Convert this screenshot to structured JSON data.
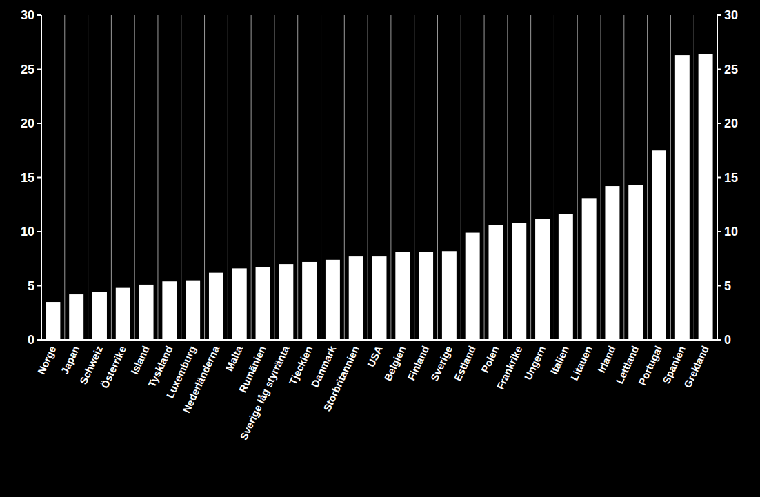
{
  "chart_data": {
    "type": "bar",
    "categories": [
      "Norge",
      "Japan",
      "Schweiz",
      "Österrike",
      "Island",
      "Tyskland",
      "Luxemburg",
      "Nederländerna",
      "Malta",
      "Rumänien",
      "Sverige låg styrränta",
      "Tjeckien",
      "Danmark",
      "Storbritannien",
      "USA",
      "Belgien",
      "Finland",
      "Sverige",
      "Estland",
      "Polen",
      "Frankrike",
      "Ungern",
      "Italien",
      "Litauen",
      "Irland",
      "Lettland",
      "Portugal",
      "Spanien",
      "Grekland"
    ],
    "values": [
      3.5,
      4.2,
      4.4,
      4.8,
      5.1,
      5.4,
      5.5,
      6.2,
      6.6,
      6.7,
      7.0,
      7.2,
      7.4,
      7.7,
      7.7,
      8.1,
      8.1,
      8.2,
      9.9,
      10.6,
      10.8,
      11.2,
      11.6,
      13.1,
      14.2,
      14.3,
      17.5,
      26.3,
      26.4
    ],
    "color": "#ffffff",
    "ylim": [
      0,
      30
    ],
    "yticks": [
      0,
      5,
      10,
      15,
      20,
      25,
      30
    ],
    "y2lim": [
      0,
      30
    ],
    "y2ticks": [
      0,
      5,
      10,
      15,
      20,
      25,
      30
    ],
    "grid": true
  }
}
